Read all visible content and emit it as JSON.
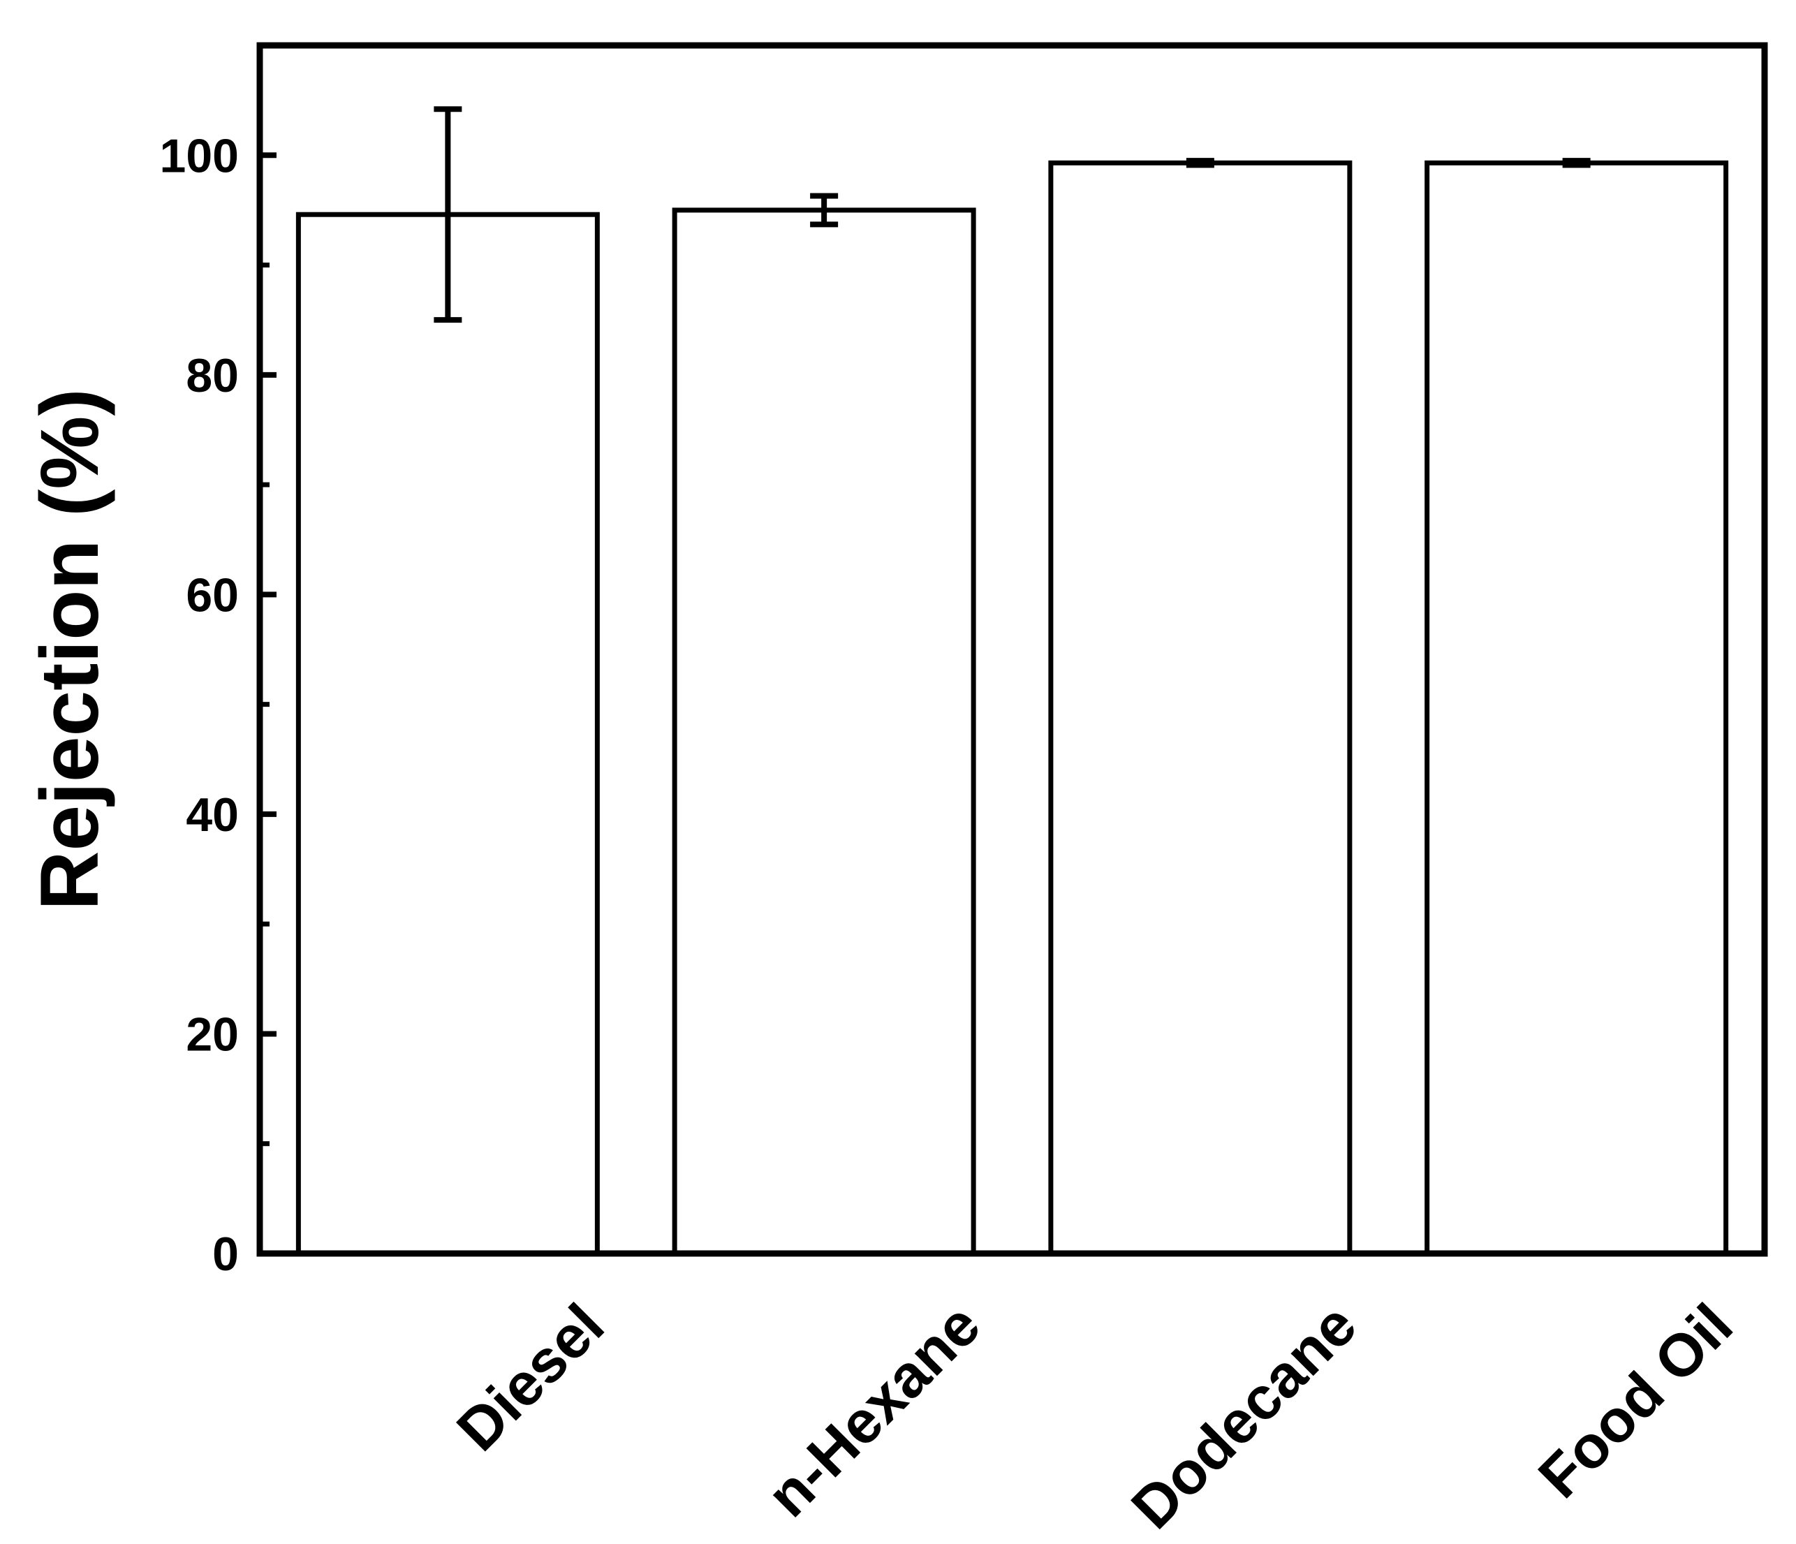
{
  "chart_data": {
    "type": "bar",
    "title": "",
    "xlabel": "",
    "ylabel": "Rejection (%)",
    "ylim": [
      0,
      110
    ],
    "y_ticks_major": [
      0,
      20,
      40,
      60,
      80,
      100
    ],
    "y_ticks_minor": [
      10,
      30,
      50,
      70,
      90
    ],
    "categories": [
      "Diesel",
      "n-Hexane",
      "Dodecane",
      "Food Oil"
    ],
    "values": [
      94.6,
      95.0,
      99.3,
      99.3
    ],
    "errors": [
      9.6,
      1.3,
      0.2,
      0.2
    ],
    "grid": false,
    "legend": "none",
    "bar_fill": "#ffffff",
    "stroke_color": "#000000"
  }
}
